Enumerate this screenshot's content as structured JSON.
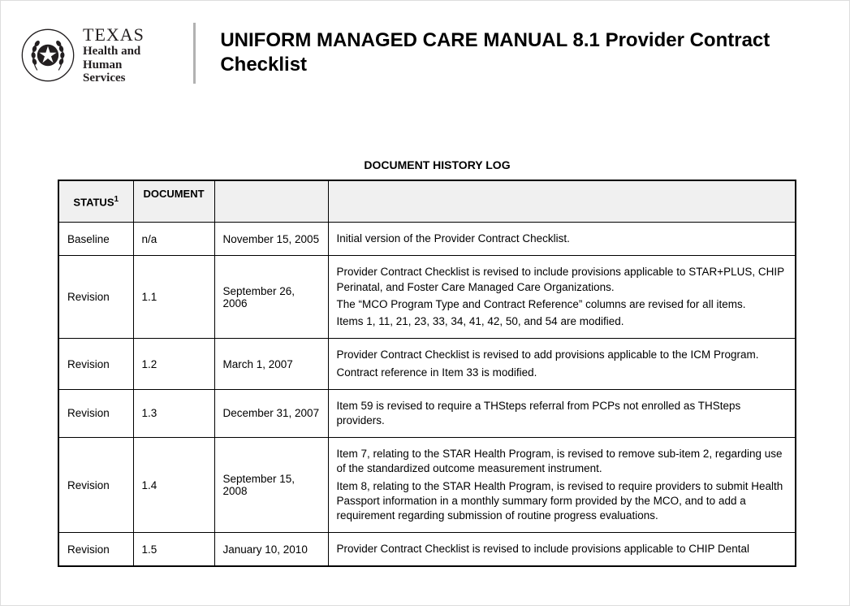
{
  "org": {
    "name": "TEXAS",
    "subline1": "Health and Human",
    "subline2": "Services"
  },
  "title": "UNIFORM MANAGED CARE MANUAL 8.1 Provider Contract Checklist",
  "table": {
    "caption": "DOCUMENT HISTORY LOG",
    "columns": {
      "status": "STATUS",
      "status_sup": "1",
      "document": "DOCUMENT",
      "date": "",
      "description": ""
    },
    "rows": [
      {
        "status": "Baseline",
        "document": "n/a",
        "date": "November 15, 2005",
        "description": [
          "Initial version of the Provider Contract Checklist."
        ]
      },
      {
        "status": "Revision",
        "document": "1.1",
        "date": "September 26, 2006",
        "description": [
          "Provider Contract Checklist is revised to include provisions applicable to STAR+PLUS, CHIP Perinatal, and Foster Care Managed Care Organizations.",
          "The “MCO Program Type and Contract Reference” columns are revised for all items.",
          "Items 1, 11, 21, 23, 33, 34, 41, 42, 50, and 54 are modified."
        ]
      },
      {
        "status": "Revision",
        "document": "1.2",
        "date": "March 1, 2007",
        "description": [
          "Provider Contract Checklist is revised to add provisions applicable to the ICM Program.",
          "Contract reference in Item 33 is modified."
        ]
      },
      {
        "status": "Revision",
        "document": "1.3",
        "date": "December 31, 2007",
        "description": [
          "Item 59 is revised to require a THSteps referral from PCPs not enrolled as THSteps providers."
        ]
      },
      {
        "status": "Revision",
        "document": "1.4",
        "date": "September 15, 2008",
        "description": [
          "Item 7, relating to the STAR Health Program, is revised to remove sub-item 2, regarding use of the standardized outcome measurement instrument.",
          "Item 8, relating to the STAR Health Program, is revised to require providers to submit Health Passport information in a monthly summary form provided by the MCO, and to add a requirement regarding submission of routine progress evaluations."
        ]
      },
      {
        "status": "Revision",
        "document": "1.5",
        "date": "January 10, 2010",
        "description": [
          "Provider Contract Checklist is revised to include provisions applicable to CHIP Dental"
        ]
      }
    ]
  },
  "colors": {
    "header_bg": "#f0f0f0",
    "border": "#000000",
    "divider": "#b2b2b2",
    "text_dark": "#231f20"
  }
}
